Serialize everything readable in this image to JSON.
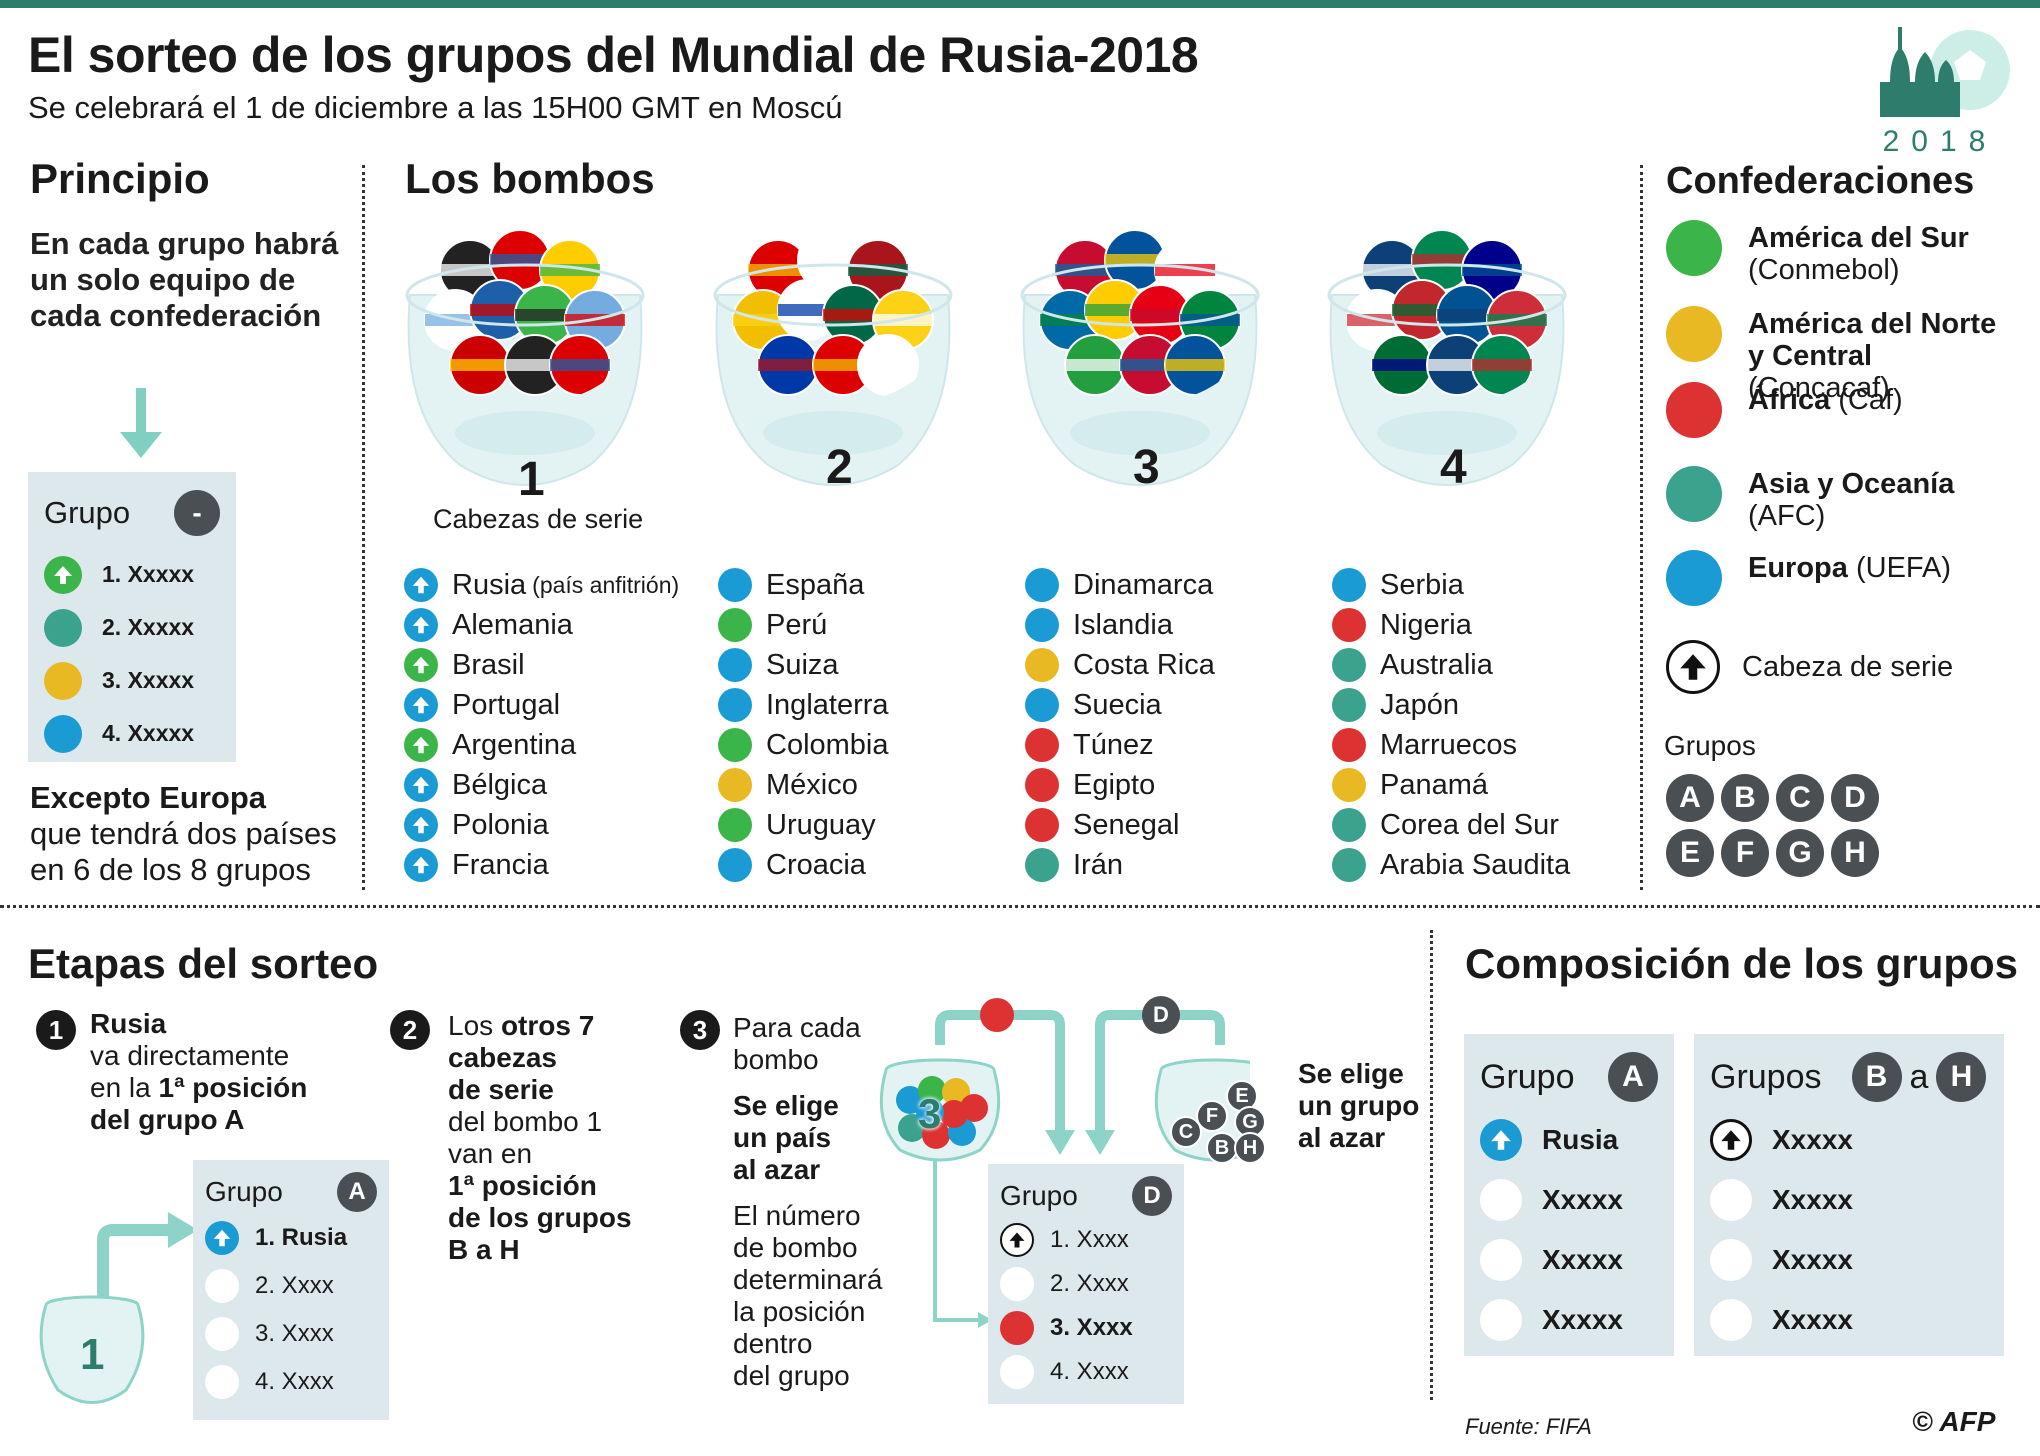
{
  "title": "El sorteo de los grupos del Mundial de Rusia-2018",
  "subtitle": "Se celebrará el 1 de diciembre a las 15H00 GMT en Moscú",
  "logo_year": "2018",
  "principio": {
    "heading": "Principio",
    "text": "En cada grupo habrá un solo equipo de cada confederación",
    "group_label": "Grupo",
    "group_badge": "-",
    "rows": [
      "1. Xxxxx",
      "2. Xxxxx",
      "3. Xxxxx",
      "4. Xxxxx"
    ],
    "except_bold": "Excepto Europa",
    "except_text": "que tendrá dos países en 6 de los 8 grupos"
  },
  "bombos": {
    "heading": "Los bombos",
    "pots": [
      {
        "number": "1",
        "caption": "Cabezas de serie"
      },
      {
        "number": "2",
        "caption": ""
      },
      {
        "number": "3",
        "caption": ""
      },
      {
        "number": "4",
        "caption": ""
      }
    ],
    "pot1": [
      {
        "name": "Rusia",
        "note": "(país anfitrión)",
        "conf": "blue"
      },
      {
        "name": "Alemania",
        "conf": "blue"
      },
      {
        "name": "Brasil",
        "conf": "green"
      },
      {
        "name": "Portugal",
        "conf": "blue"
      },
      {
        "name": "Argentina",
        "conf": "green"
      },
      {
        "name": "Bélgica",
        "conf": "blue"
      },
      {
        "name": "Polonia",
        "conf": "blue"
      },
      {
        "name": "Francia",
        "conf": "blue"
      }
    ],
    "pot2": [
      {
        "name": "España",
        "conf": "blue"
      },
      {
        "name": "Perú",
        "conf": "green"
      },
      {
        "name": "Suiza",
        "conf": "blue"
      },
      {
        "name": "Inglaterra",
        "conf": "blue"
      },
      {
        "name": "Colombia",
        "conf": "green"
      },
      {
        "name": "México",
        "conf": "yellow"
      },
      {
        "name": "Uruguay",
        "conf": "green"
      },
      {
        "name": "Croacia",
        "conf": "blue"
      }
    ],
    "pot3": [
      {
        "name": "Dinamarca",
        "conf": "blue"
      },
      {
        "name": "Islandia",
        "conf": "blue"
      },
      {
        "name": "Costa Rica",
        "conf": "yellow"
      },
      {
        "name": "Suecia",
        "conf": "blue"
      },
      {
        "name": "Túnez",
        "conf": "red"
      },
      {
        "name": "Egipto",
        "conf": "red"
      },
      {
        "name": "Senegal",
        "conf": "red"
      },
      {
        "name": "Irán",
        "conf": "teal"
      }
    ],
    "pot4": [
      {
        "name": "Serbia",
        "conf": "blue"
      },
      {
        "name": "Nigeria",
        "conf": "red"
      },
      {
        "name": "Australia",
        "conf": "teal"
      },
      {
        "name": "Japón",
        "conf": "teal"
      },
      {
        "name": "Marruecos",
        "conf": "red"
      },
      {
        "name": "Panamá",
        "conf": "yellow"
      },
      {
        "name": "Corea del Sur",
        "conf": "teal"
      },
      {
        "name": "Arabia Saudita",
        "conf": "teal"
      }
    ]
  },
  "confederaciones": {
    "heading": "Confederaciones",
    "items": [
      {
        "bold": "América del Sur",
        "sub": "(Conmebol)",
        "color": "#3bb54a"
      },
      {
        "bold": "América del Norte y Central",
        "sub": "(Concacaf)",
        "color": "#e8b923"
      },
      {
        "bold": "África",
        "sub": "(Caf)",
        "color": "#dc3232"
      },
      {
        "bold": "Asia y Oceanía",
        "sub": "(AFC)",
        "color": "#3aa28d"
      },
      {
        "bold": "Europa",
        "sub": "(UEFA)",
        "color": "#1a9bd4"
      }
    ],
    "seed_label": "Cabeza de serie",
    "groups_label": "Grupos",
    "groups": [
      "A",
      "B",
      "C",
      "D",
      "E",
      "F",
      "G",
      "H"
    ]
  },
  "etapas": {
    "heading": "Etapas del sorteo",
    "step1": {
      "num": "1",
      "bold1": "Rusia",
      "t1": "va directamente",
      "t2": "en la",
      "bold2": "1ª posición",
      "bold3": "del grupo A"
    },
    "step1_box": {
      "label": "Grupo",
      "badge": "A",
      "rows": [
        "1. Rusia",
        "2. Xxxx",
        "3. Xxxx",
        "4. Xxxx"
      ],
      "pot": "1"
    },
    "step2": {
      "num": "2",
      "t1": "Los",
      "bold1": "otros 7",
      "bold2": "cabezas",
      "bold3": "de serie",
      "t2": "del bombo 1",
      "t3": "van en",
      "bold4": "1ª posición",
      "bold5": "de los grupos",
      "bold6": "B a H"
    },
    "step3": {
      "num": "3",
      "t1": "Para cada",
      "t2": "bombo",
      "bold1": "Se elige",
      "bold2": "un país",
      "bold3": "al azar",
      "t3": "El número",
      "t4": "de bombo",
      "t5": "determinará",
      "t6": "la posición",
      "t7": "dentro",
      "t8": "del grupo",
      "pot": "3",
      "right_bold1": "Se elige",
      "right_bold2": "un grupo",
      "right_bold3": "al azar",
      "group_ball": "D"
    },
    "step3_box": {
      "label": "Grupo",
      "badge": "D",
      "rows": [
        "1. Xxxx",
        "2. Xxxx",
        "3. Xxxx",
        "4. Xxxx"
      ]
    },
    "bowl_letters": [
      "C",
      "F",
      "E",
      "B",
      "G",
      "H"
    ]
  },
  "composicion": {
    "heading": "Composición de los grupos",
    "box_a": {
      "label": "Grupo",
      "badge": "A",
      "rows": [
        "Rusia",
        "Xxxxx",
        "Xxxxx",
        "Xxxxx"
      ]
    },
    "box_bh": {
      "label": "Grupos",
      "badge1": "B",
      "mid": "a",
      "badge2": "H",
      "rows": [
        "Xxxxx",
        "Xxxxx",
        "Xxxxx",
        "Xxxxx"
      ]
    }
  },
  "source": "Fuente: FIFA",
  "credit": "© AFP"
}
